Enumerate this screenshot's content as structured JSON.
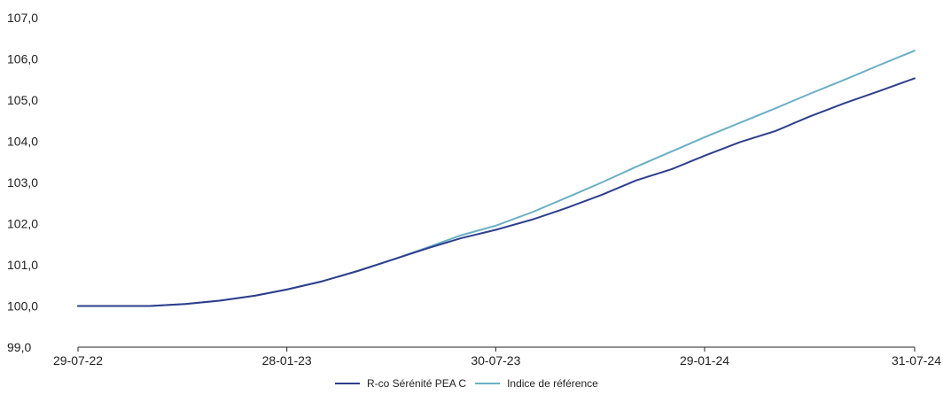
{
  "colors": {
    "fund": "#2E3E8C",
    "benchmark": "#6AAFC4",
    "axis": "#222222",
    "text": "#222222"
  },
  "chart_data": {
    "type": "line",
    "title": "",
    "xlabel": "",
    "ylabel": "",
    "x_range": [
      "2022-07-29",
      "2024-07-31"
    ],
    "ylim": [
      99.0,
      107.0
    ],
    "y_ticks": [
      99.0,
      100.0,
      101.0,
      102.0,
      103.0,
      104.0,
      105.0,
      106.0,
      107.0
    ],
    "y_tick_labels": [
      "99,0",
      "100,0",
      "101,0",
      "102,0",
      "103,0",
      "104,0",
      "105,0",
      "106,0",
      "107,0"
    ],
    "x_ticks": [
      "2022-07-29",
      "2023-01-28",
      "2023-07-30",
      "2024-01-29",
      "2024-07-31"
    ],
    "x_tick_labels": [
      "29-07-22",
      "28-01-23",
      "30-07-23",
      "29-01-24",
      "31-07-24"
    ],
    "grid": false,
    "legend_position": "bottom-center",
    "series": [
      {
        "name": "R-co Sérénité PEA C",
        "color": "#2E3E8C",
        "x": [
          "2022-07-29",
          "2022-08-31",
          "2022-09-30",
          "2022-10-31",
          "2022-11-30",
          "2022-12-31",
          "2023-01-28",
          "2023-02-28",
          "2023-03-31",
          "2023-04-30",
          "2023-05-31",
          "2023-06-30",
          "2023-07-30",
          "2023-08-31",
          "2023-09-30",
          "2023-10-31",
          "2023-11-30",
          "2023-12-31",
          "2024-01-29",
          "2024-02-29",
          "2024-03-31",
          "2024-04-30",
          "2024-05-31",
          "2024-06-30",
          "2024-07-31"
        ],
        "y": [
          100.0,
          100.0,
          100.0,
          100.05,
          100.13,
          100.25,
          100.4,
          100.6,
          100.85,
          101.12,
          101.4,
          101.65,
          101.85,
          102.1,
          102.38,
          102.7,
          103.05,
          103.32,
          103.65,
          103.98,
          104.25,
          104.6,
          104.93,
          105.22,
          105.53
        ]
      },
      {
        "name": "Indice de référence",
        "color": "#6AAFC4",
        "x": [
          "2022-07-29",
          "2022-08-31",
          "2022-09-30",
          "2022-10-31",
          "2022-11-30",
          "2022-12-31",
          "2023-01-28",
          "2023-02-28",
          "2023-03-31",
          "2023-04-30",
          "2023-05-31",
          "2023-06-30",
          "2023-07-30",
          "2023-08-31",
          "2023-09-30",
          "2023-10-31",
          "2023-11-30",
          "2023-12-31",
          "2024-01-29",
          "2024-02-29",
          "2024-03-31",
          "2024-04-30",
          "2024-05-31",
          "2024-06-30",
          "2024-07-31"
        ],
        "y": [
          100.0,
          100.0,
          100.0,
          100.05,
          100.13,
          100.25,
          100.4,
          100.6,
          100.85,
          101.12,
          101.42,
          101.72,
          101.95,
          102.28,
          102.63,
          103.0,
          103.38,
          103.75,
          104.1,
          104.45,
          104.8,
          105.15,
          105.5,
          105.85,
          106.2
        ]
      }
    ]
  }
}
